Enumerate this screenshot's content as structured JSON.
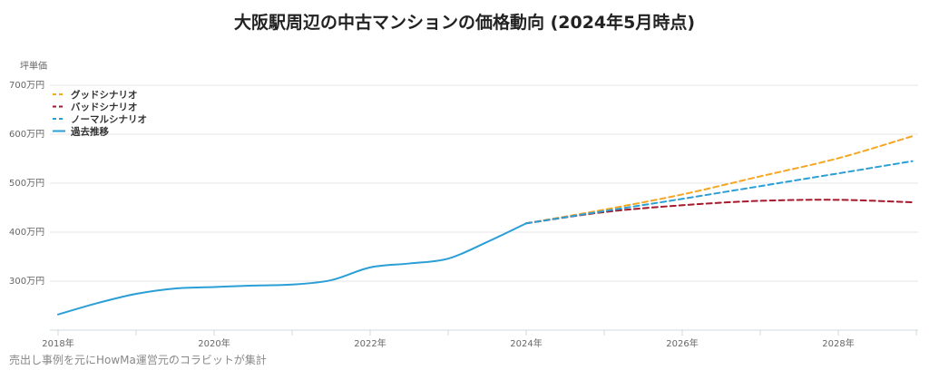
{
  "chart_data": {
    "type": "line",
    "title": "大阪駅周辺の中古マンションの価格動向 (2024年5月時点)",
    "ylabel": "坪単価",
    "y_unit": "万円",
    "ylim": [
      200,
      700
    ],
    "xlim": [
      2018,
      2029
    ],
    "x_ticks": [
      "2018年",
      "2020年",
      "2022年",
      "2024年",
      "2026年",
      "2028年"
    ],
    "y_ticks": [
      "300万円",
      "400万円",
      "500万円",
      "600万円",
      "700万円"
    ],
    "legend_position": "top-left",
    "grid": true,
    "series": [
      {
        "name": "グッドシナリオ",
        "style": "dashed",
        "color": "#f5a623",
        "points": [
          [
            2024.0,
            418
          ],
          [
            2025.0,
            446
          ],
          [
            2026.0,
            477
          ],
          [
            2027.0,
            514
          ],
          [
            2028.0,
            551
          ],
          [
            2028.95,
            596
          ]
        ]
      },
      {
        "name": "バッドシナリオ",
        "style": "dashed",
        "color": "#a11b2c",
        "points": [
          [
            2024.0,
            418
          ],
          [
            2025.0,
            441
          ],
          [
            2026.0,
            455
          ],
          [
            2027.0,
            464
          ],
          [
            2028.0,
            466
          ],
          [
            2028.95,
            461
          ]
        ]
      },
      {
        "name": "ノーマルシナリオ",
        "style": "dashed",
        "color": "#2a9fd6",
        "points": [
          [
            2024.0,
            418
          ],
          [
            2025.0,
            443
          ],
          [
            2026.0,
            468
          ],
          [
            2027.0,
            494
          ],
          [
            2028.0,
            520
          ],
          [
            2028.95,
            545
          ]
        ]
      },
      {
        "name": "過去推移",
        "style": "solid",
        "color": "#2a9fd6",
        "points": [
          [
            2018.0,
            232
          ],
          [
            2018.5,
            255
          ],
          [
            2019.0,
            274
          ],
          [
            2019.5,
            285
          ],
          [
            2020.0,
            288
          ],
          [
            2020.5,
            291
          ],
          [
            2021.0,
            293
          ],
          [
            2021.5,
            302
          ],
          [
            2022.0,
            328
          ],
          [
            2022.5,
            336
          ],
          [
            2023.0,
            346
          ],
          [
            2023.5,
            380
          ],
          [
            2024.0,
            418
          ]
        ]
      }
    ]
  },
  "footer": {
    "source_note": "売出し事例を元にHowMa運営元のコラビットが集計"
  }
}
